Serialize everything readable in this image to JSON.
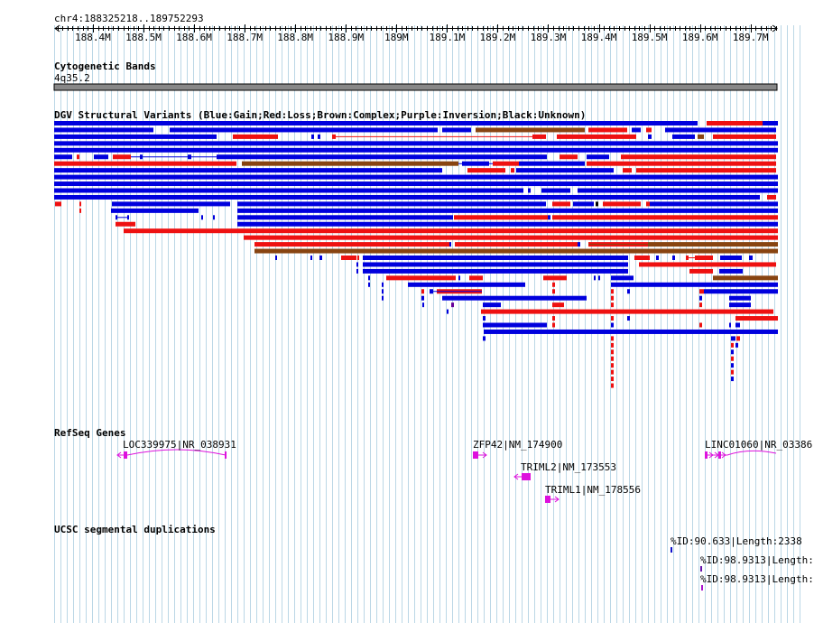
{
  "coord_label": "chr4:188325218..189752293",
  "region": {
    "start": 188325218,
    "end": 189752293
  },
  "ruler_ticks": [
    {
      "pos": 188400000,
      "label": "188.4M"
    },
    {
      "pos": 188500000,
      "label": "188.5M"
    },
    {
      "pos": 188600000,
      "label": "188.6M"
    },
    {
      "pos": 188700000,
      "label": "188.7M"
    },
    {
      "pos": 188800000,
      "label": "188.8M"
    },
    {
      "pos": 188900000,
      "label": "188.9M"
    },
    {
      "pos": 189000000,
      "label": "189M"
    },
    {
      "pos": 189100000,
      "label": "189.1M"
    },
    {
      "pos": 189200000,
      "label": "189.2M"
    },
    {
      "pos": 189300000,
      "label": "189.3M"
    },
    {
      "pos": 189400000,
      "label": "189.4M"
    },
    {
      "pos": 189500000,
      "label": "189.5M"
    },
    {
      "pos": 189600000,
      "label": "189.6M"
    },
    {
      "pos": 189700000,
      "label": "189.7M"
    }
  ],
  "cyto": {
    "title": "Cytogenetic Bands",
    "band": "4q35.2"
  },
  "dgv": {
    "title": "DGV Structural Variants (Blue:Gain;Red:Loss;Brown:Complex;Purple:Inversion;Black:Unknown)",
    "colors": {
      "gain": "#0000dd",
      "loss": "#ee1111",
      "complex": "#884411",
      "inversion": "#660099",
      "unknown": "#000000"
    }
  },
  "refseq": {
    "title": "RefSeq Genes",
    "genes": [
      {
        "label": "LOC339975|NR_038931"
      },
      {
        "label": "ZFP42|NM_174900"
      },
      {
        "label": "TRIML2|NM_173553"
      },
      {
        "label": "TRIML1|NM_178556"
      },
      {
        "label": "LINC01060|NR_03386"
      }
    ]
  },
  "segdup": {
    "title": "UCSC segmental duplications",
    "items": [
      {
        "label": "%ID:90.633|Length:2338"
      },
      {
        "label": "%ID:98.9313|Length:"
      },
      {
        "label": "%ID:98.9313|Length:"
      }
    ]
  }
}
